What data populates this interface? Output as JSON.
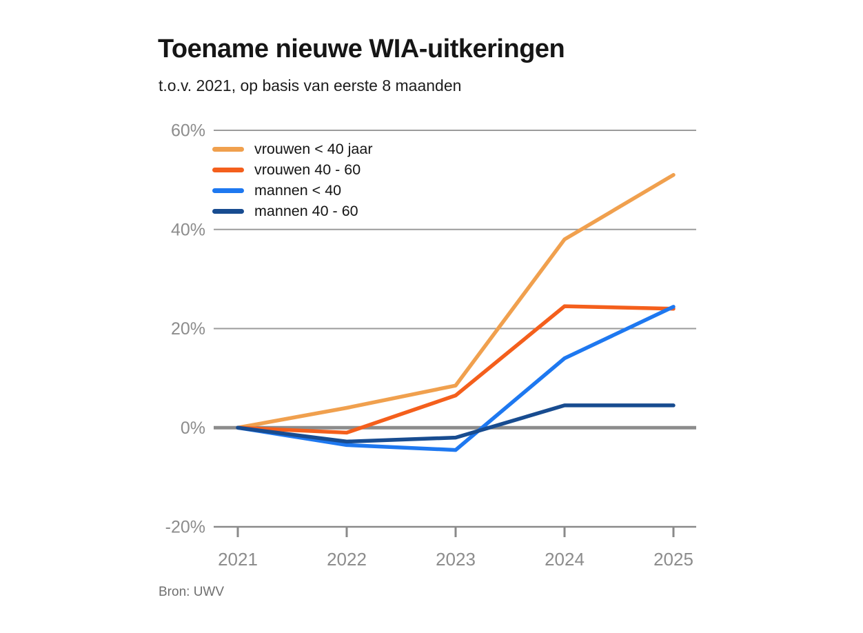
{
  "header": {
    "title": "Toename nieuwe WIA-uitkeringen",
    "subtitle": "t.o.v. 2021, op basis van eerste 8 maanden"
  },
  "footer": {
    "source": "Bron: UWV"
  },
  "colors": {
    "background": "#ffffff",
    "title_text": "#161616",
    "subtitle_text": "#1d1d1d",
    "gridline": "#9b9b9b",
    "zero_line": "#8c8c8c",
    "axis_baseline": "#8a8a8a",
    "axis_tick": "#8a8a8a",
    "axis_text": "#8c8c8c",
    "source_text": "#6f6f6f",
    "series_vrouwen_jong": "#F0A04E",
    "series_vrouwen_oud": "#F45F1C",
    "series_mannen_jong": "#1E78F0",
    "series_mannen_oud": "#184C90"
  },
  "chart_data": {
    "type": "line",
    "title": "Toename nieuwe WIA-uitkeringen",
    "subtitle": "t.o.v. 2021, op basis van eerste 8 maanden",
    "source": "Bron: UWV",
    "x": [
      2021,
      2022,
      2023,
      2024,
      2025
    ],
    "xtick_labels": [
      "2021",
      "2022",
      "2023",
      "2024",
      "2025"
    ],
    "unit": "%",
    "ylim": [
      -20,
      60
    ],
    "yticks": [
      60,
      40,
      20,
      0,
      -20
    ],
    "ytick_labels": [
      "60%",
      "40%",
      "20%",
      "0%",
      "-20%"
    ],
    "grid": "horizontal",
    "legend_position": "top-left-inside",
    "series": [
      {
        "name": "vrouwen < 40 jaar",
        "color": "#F0A04E",
        "values": [
          0,
          4,
          8.5,
          38,
          51
        ]
      },
      {
        "name": "vrouwen 40 - 60",
        "color": "#F45F1C",
        "values": [
          0,
          -1,
          6.5,
          24.5,
          24
        ]
      },
      {
        "name": "mannen < 40",
        "color": "#1E78F0",
        "values": [
          0,
          -3.5,
          -4.5,
          14,
          24.4
        ]
      },
      {
        "name": "mannen 40 - 60",
        "color": "#184C90",
        "values": [
          0,
          -2.8,
          -2,
          4.5,
          4.5
        ]
      }
    ]
  }
}
